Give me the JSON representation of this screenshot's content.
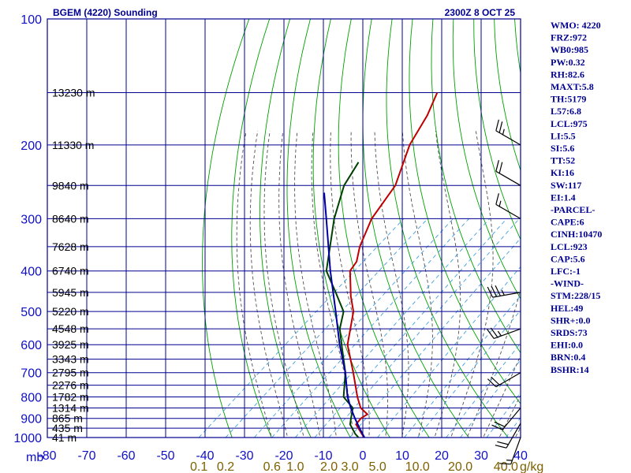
{
  "header": {
    "station_title": "BGEM (4220) Sounding",
    "valid_time": "2300Z  8 OCT 25"
  },
  "indices": [
    "WMO: 4220",
    "FRZ:972",
    "WB0:985",
    "PW:0.32",
    "RH:82.6",
    "MAXT:5.8",
    "TH:5179",
    "L57:6.8",
    "LCL:975",
    "LI:5.5",
    "SI:5.6",
    "TT:52",
    "KI:16",
    "SW:117",
    "EI:1.4",
    "-PARCEL-",
    "CAPE:6",
    "CINH:10470",
    "LCL:923",
    "CAP:5.6",
    "LFC:-1",
    "-WIND-",
    "STM:228/15",
    "HEL:49",
    "SHR+:0.0",
    "SRDS:73",
    "EHI:0.0",
    "BRN:0.4",
    "BSHR:14"
  ],
  "colors": {
    "axis_text": "#1010c8",
    "grid": "#000090",
    "dry_adiabat": "#00a000",
    "moist_adiabat": "#505050",
    "mixing_ratio": "#40a0e0",
    "temperature": "#c00000",
    "dewpoint": "#004000",
    "parcel": "#0000a0",
    "mixing_label": "#806000",
    "height_label": "#000000",
    "wind_barb": "#000000"
  },
  "chart_data": {
    "type": "line",
    "skew_per_log_p": 1.0,
    "xlim": [
      -80,
      40
    ],
    "ylim": [
      100,
      1000
    ],
    "pressure_ticks": [
      {
        "p": 100,
        "label": "100"
      },
      {
        "p": 200,
        "label": "200"
      },
      {
        "p": 300,
        "label": "300"
      },
      {
        "p": 400,
        "label": "400"
      },
      {
        "p": 500,
        "label": "500"
      },
      {
        "p": 600,
        "label": "600"
      },
      {
        "p": 700,
        "label": "700"
      },
      {
        "p": 800,
        "label": "800"
      },
      {
        "p": 900,
        "label": "900"
      },
      {
        "p": 1000,
        "label": "1000"
      }
    ],
    "temperature_ticks": [
      {
        "t": -80,
        "label": "-80"
      },
      {
        "t": -70,
        "label": "-70"
      },
      {
        "t": -60,
        "label": "-60"
      },
      {
        "t": -50,
        "label": "-50"
      },
      {
        "t": -40,
        "label": "-40"
      },
      {
        "t": -30,
        "label": "-30"
      },
      {
        "t": -20,
        "label": "-20"
      },
      {
        "t": -10,
        "label": "-10"
      },
      {
        "t": 0,
        "label": "0"
      },
      {
        "t": 10,
        "label": "10"
      },
      {
        "t": 20,
        "label": "20"
      },
      {
        "t": 30,
        "label": "30"
      },
      {
        "t": 40,
        "label": "40"
      }
    ],
    "pressure_unit": "mb",
    "mixing_ratio_unit": "g/kg",
    "mixing_ratio_labels": [
      {
        "w": 0.1,
        "label": "0.1"
      },
      {
        "w": 0.2,
        "label": "0.2"
      },
      {
        "w": 0.6,
        "label": "0.6"
      },
      {
        "w": 1.0,
        "label": "1.0"
      },
      {
        "w": 2.0,
        "label": "2.0"
      },
      {
        "w": 3.0,
        "label": "3.0"
      },
      {
        "w": 5.0,
        "label": "5.0"
      },
      {
        "w": 10.0,
        "label": "10.0"
      },
      {
        "w": 20.0,
        "label": "20.0"
      },
      {
        "w": 40.0,
        "label": "40.0"
      }
    ],
    "height_levels": [
      {
        "p": 150,
        "label": "13230 m"
      },
      {
        "p": 200,
        "label": "11330 m"
      },
      {
        "p": 250,
        "label": "9840 m"
      },
      {
        "p": 300,
        "label": "8640 m"
      },
      {
        "p": 350,
        "label": "7628 m"
      },
      {
        "p": 400,
        "label": "6740 m"
      },
      {
        "p": 450,
        "label": "5945 m"
      },
      {
        "p": 500,
        "label": "5220 m"
      },
      {
        "p": 550,
        "label": "4548 m"
      },
      {
        "p": 600,
        "label": "3925 m"
      },
      {
        "p": 650,
        "label": "3343 m"
      },
      {
        "p": 700,
        "label": "2795 m"
      },
      {
        "p": 750,
        "label": "2276 m"
      },
      {
        "p": 800,
        "label": "1782 m"
      },
      {
        "p": 850,
        "label": "1314 m"
      },
      {
        "p": 900,
        "label": "865 m"
      },
      {
        "p": 950,
        "label": "435 m"
      },
      {
        "p": 1000,
        "label": "41 m"
      }
    ],
    "series": [
      {
        "key": "temperature",
        "p": [
          1001,
          990,
          930,
          900,
          880,
          850,
          800,
          700,
          600,
          500,
          460,
          400,
          380,
          350,
          300,
          250,
          200,
          170,
          150
        ],
        "t": [
          0.5,
          -0.5,
          -5.5,
          -6.0,
          -5.5,
          -9.0,
          -13.0,
          -21.0,
          -30.5,
          -38.5,
          -43.5,
          -51.0,
          -52.0,
          -55.5,
          -60.5,
          -64.0,
          -72.0,
          -76.0,
          -80.0
        ]
      },
      {
        "key": "dewpoint",
        "p": [
          1001,
          980,
          930,
          900,
          850,
          800,
          700,
          600,
          550,
          500,
          450,
          400,
          300,
          250,
          220
        ],
        "t": [
          -1.0,
          -3.0,
          -7.0,
          -8.5,
          -11.0,
          -16.5,
          -23.0,
          -32.0,
          -37.0,
          -41.0,
          -48.5,
          -57.0,
          -70.0,
          -77.0,
          -80.0
        ]
      },
      {
        "key": "parcel",
        "p": [
          1001,
          950,
          900,
          850,
          800,
          700,
          600,
          500,
          400,
          300,
          260
        ],
        "t": [
          0.5,
          -3.5,
          -7.5,
          -11.5,
          -15.5,
          -23.0,
          -32.5,
          -43.0,
          -56.0,
          -72.0,
          -80.0
        ]
      }
    ],
    "wind_barbs": [
      {
        "p": 200,
        "dir": 300,
        "spd": 25
      },
      {
        "p": 250,
        "dir": 300,
        "spd": 20
      },
      {
        "p": 300,
        "dir": 300,
        "spd": 15
      },
      {
        "p": 450,
        "dir": 260,
        "spd": 35
      },
      {
        "p": 550,
        "dir": 250,
        "spd": 25
      },
      {
        "p": 700,
        "dir": 240,
        "spd": 20
      },
      {
        "p": 850,
        "dir": 220,
        "spd": 20
      },
      {
        "p": 925,
        "dir": 210,
        "spd": 20
      },
      {
        "p": 1000,
        "dir": 200,
        "spd": 15
      }
    ]
  }
}
